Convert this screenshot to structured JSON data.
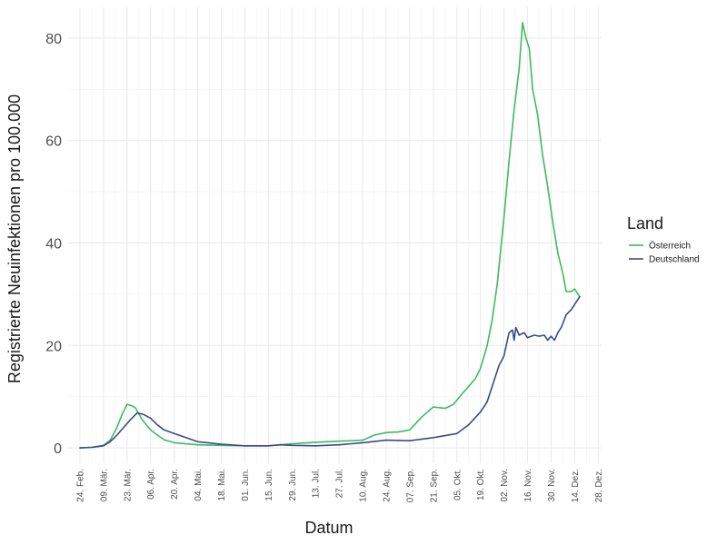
{
  "chart_data": {
    "type": "line",
    "title": "",
    "xlabel": "Datum",
    "ylabel": "Registrierte Neuinfektionen pro 100.000",
    "ylim": [
      -3,
      86
    ],
    "xlim": [
      "2020-02-17",
      "2020-12-30"
    ],
    "grid": true,
    "legend_position": "right",
    "legend_title": "Land",
    "x_tick_labels": [
      "24. Feb.",
      "09. Mär.",
      "23. Mär.",
      "06. Apr.",
      "20. Apr.",
      "04. Mai.",
      "18. Mai.",
      "01. Jun.",
      "15. Jun.",
      "29. Jun.",
      "13. Jul.",
      "27. Jul.",
      "10. Aug.",
      "24. Aug.",
      "07. Sep.",
      "21. Sep.",
      "05. Okt.",
      "19. Okt.",
      "02. Nov.",
      "16. Nov.",
      "30. Nov.",
      "14. Dez.",
      "28. Dez."
    ],
    "x_tick_dates": [
      "2020-02-24",
      "2020-03-09",
      "2020-03-23",
      "2020-04-06",
      "2020-04-20",
      "2020-05-04",
      "2020-05-18",
      "2020-06-01",
      "2020-06-15",
      "2020-06-29",
      "2020-07-13",
      "2020-07-27",
      "2020-08-10",
      "2020-08-24",
      "2020-09-07",
      "2020-09-21",
      "2020-10-05",
      "2020-10-19",
      "2020-11-02",
      "2020-11-16",
      "2020-11-30",
      "2020-12-14",
      "2020-12-28"
    ],
    "y_ticks": [
      0,
      20,
      40,
      60,
      80
    ],
    "y_tick_labels": [
      "0",
      "20",
      "40",
      "60",
      "80"
    ],
    "series": [
      {
        "name": "Österreich",
        "color": "#3cbb5f",
        "points": [
          [
            "2020-02-24",
            0
          ],
          [
            "2020-03-02",
            0.1
          ],
          [
            "2020-03-09",
            0.5
          ],
          [
            "2020-03-13",
            1.5
          ],
          [
            "2020-03-17",
            4
          ],
          [
            "2020-03-20",
            6.5
          ],
          [
            "2020-03-23",
            8.5
          ],
          [
            "2020-03-26",
            8.2
          ],
          [
            "2020-03-28",
            7.8
          ],
          [
            "2020-04-01",
            5.5
          ],
          [
            "2020-04-06",
            3.5
          ],
          [
            "2020-04-10",
            2.5
          ],
          [
            "2020-04-14",
            1.6
          ],
          [
            "2020-04-20",
            1
          ],
          [
            "2020-04-27",
            0.8
          ],
          [
            "2020-05-04",
            0.6
          ],
          [
            "2020-05-18",
            0.5
          ],
          [
            "2020-06-01",
            0.4
          ],
          [
            "2020-06-15",
            0.4
          ],
          [
            "2020-06-29",
            0.8
          ],
          [
            "2020-07-13",
            1.1
          ],
          [
            "2020-07-27",
            1.3
          ],
          [
            "2020-08-10",
            1.5
          ],
          [
            "2020-08-17",
            2.5
          ],
          [
            "2020-08-24",
            3
          ],
          [
            "2020-08-31",
            3.1
          ],
          [
            "2020-09-07",
            3.5
          ],
          [
            "2020-09-14",
            6
          ],
          [
            "2020-09-21",
            8
          ],
          [
            "2020-09-28",
            7.7
          ],
          [
            "2020-10-03",
            8.5
          ],
          [
            "2020-10-08",
            10.5
          ],
          [
            "2020-10-12",
            12
          ],
          [
            "2020-10-16",
            13.5
          ],
          [
            "2020-10-19",
            15.5
          ],
          [
            "2020-10-23",
            20
          ],
          [
            "2020-10-26",
            25
          ],
          [
            "2020-10-29",
            32
          ],
          [
            "2020-11-02",
            45
          ],
          [
            "2020-11-05",
            56
          ],
          [
            "2020-11-08",
            66
          ],
          [
            "2020-11-11",
            74
          ],
          [
            "2020-11-13",
            83
          ],
          [
            "2020-11-15",
            80
          ],
          [
            "2020-11-17",
            78
          ],
          [
            "2020-11-19",
            70
          ],
          [
            "2020-11-22",
            65
          ],
          [
            "2020-11-25",
            57
          ],
          [
            "2020-11-28",
            51
          ],
          [
            "2020-12-01",
            44
          ],
          [
            "2020-12-04",
            38
          ],
          [
            "2020-12-07",
            34
          ],
          [
            "2020-12-09",
            30.5
          ],
          [
            "2020-12-12",
            30.5
          ],
          [
            "2020-12-14",
            31
          ],
          [
            "2020-12-17",
            29.5
          ]
        ]
      },
      {
        "name": "Deutschland",
        "color": "#3b4b87",
        "points": [
          [
            "2020-02-24",
            0
          ],
          [
            "2020-03-02",
            0.1
          ],
          [
            "2020-03-09",
            0.4
          ],
          [
            "2020-03-13",
            1.2
          ],
          [
            "2020-03-17",
            2.5
          ],
          [
            "2020-03-21",
            4
          ],
          [
            "2020-03-25",
            5.5
          ],
          [
            "2020-03-29",
            6.8
          ],
          [
            "2020-04-02",
            6.5
          ],
          [
            "2020-04-06",
            5.8
          ],
          [
            "2020-04-10",
            4.5
          ],
          [
            "2020-04-14",
            3.5
          ],
          [
            "2020-04-20",
            2.8
          ],
          [
            "2020-04-27",
            2
          ],
          [
            "2020-05-04",
            1.2
          ],
          [
            "2020-05-18",
            0.7
          ],
          [
            "2020-06-01",
            0.4
          ],
          [
            "2020-06-15",
            0.4
          ],
          [
            "2020-06-22",
            0.6
          ],
          [
            "2020-06-29",
            0.5
          ],
          [
            "2020-07-13",
            0.4
          ],
          [
            "2020-07-27",
            0.6
          ],
          [
            "2020-08-10",
            1
          ],
          [
            "2020-08-24",
            1.5
          ],
          [
            "2020-09-07",
            1.4
          ],
          [
            "2020-09-21",
            2
          ],
          [
            "2020-10-05",
            2.8
          ],
          [
            "2020-10-12",
            4.5
          ],
          [
            "2020-10-19",
            7
          ],
          [
            "2020-10-23",
            9
          ],
          [
            "2020-10-26",
            12
          ],
          [
            "2020-10-30",
            16
          ],
          [
            "2020-11-02",
            18
          ],
          [
            "2020-11-05",
            22.5
          ],
          [
            "2020-11-07",
            23
          ],
          [
            "2020-11-08",
            21
          ],
          [
            "2020-11-09",
            23.5
          ],
          [
            "2020-11-11",
            22
          ],
          [
            "2020-11-14",
            22.5
          ],
          [
            "2020-11-16",
            21.5
          ],
          [
            "2020-11-20",
            22
          ],
          [
            "2020-11-23",
            21.8
          ],
          [
            "2020-11-26",
            22
          ],
          [
            "2020-11-28",
            21
          ],
          [
            "2020-11-30",
            21.8
          ],
          [
            "2020-12-02",
            21
          ],
          [
            "2020-12-04",
            22.5
          ],
          [
            "2020-12-06",
            23.5
          ],
          [
            "2020-12-09",
            26
          ],
          [
            "2020-12-12",
            27
          ],
          [
            "2020-12-14",
            28
          ],
          [
            "2020-12-17",
            29.5
          ]
        ]
      }
    ]
  }
}
